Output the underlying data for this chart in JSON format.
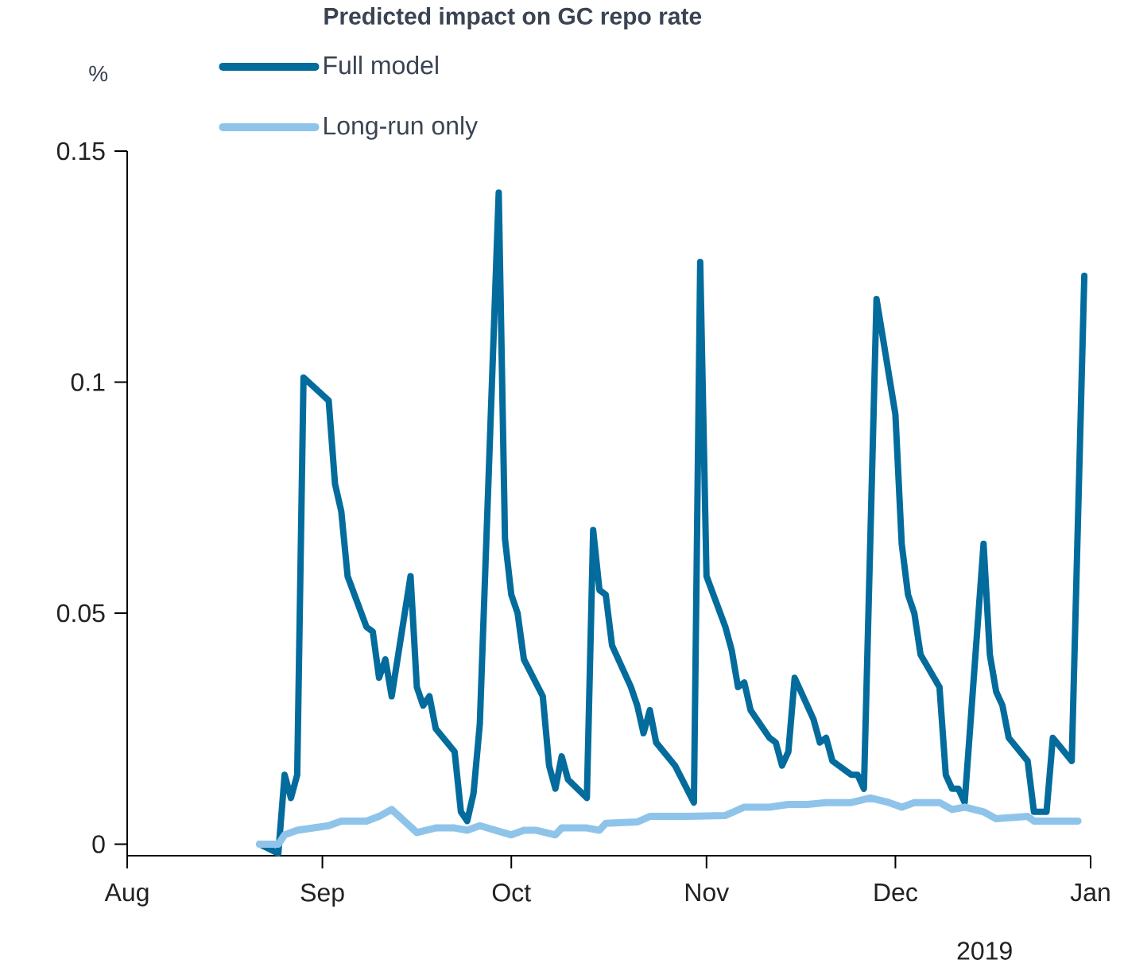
{
  "chart_data": {
    "type": "line",
    "title": "Predicted impact on GC repo rate",
    "ylabel": "%",
    "legend": "top",
    "xlim": [
      "2018-08-01",
      "2019-01-01"
    ],
    "xticks": [
      {
        "value": "2018-08-01",
        "label": "Aug"
      },
      {
        "value": "2018-09-01",
        "label": "Sep"
      },
      {
        "value": "2018-10-01",
        "label": "Oct"
      },
      {
        "value": "2018-11-01",
        "label": "Nov"
      },
      {
        "value": "2018-12-01",
        "label": "Dec"
      },
      {
        "value": "2019-01-01",
        "label": "Jan"
      }
    ],
    "ylim": [
      -0.0025,
      0.15
    ],
    "yticks": [
      0,
      0.05,
      0.1,
      0.15
    ],
    "annotations": [
      "2019"
    ],
    "series": [
      {
        "name": "Full model",
        "color": "#036c9d",
        "x": [
          "2018-08-22",
          "2018-08-25",
          "2018-08-26",
          "2018-08-27",
          "2018-08-28",
          "2018-08-29",
          "2018-09-02",
          "2018-09-03",
          "2018-09-04",
          "2018-09-05",
          "2018-09-08",
          "2018-09-09",
          "2018-09-10",
          "2018-09-11",
          "2018-09-12",
          "2018-09-15",
          "2018-09-16",
          "2018-09-17",
          "2018-09-18",
          "2018-09-19",
          "2018-09-22",
          "2018-09-23",
          "2018-09-24",
          "2018-09-25",
          "2018-09-26",
          "2018-09-29",
          "2018-09-30",
          "2018-10-01",
          "2018-10-02",
          "2018-10-03",
          "2018-10-06",
          "2018-10-07",
          "2018-10-08",
          "2018-10-09",
          "2018-10-10",
          "2018-10-13",
          "2018-10-14",
          "2018-10-15",
          "2018-10-16",
          "2018-10-17",
          "2018-10-20",
          "2018-10-21",
          "2018-10-22",
          "2018-10-23",
          "2018-10-24",
          "2018-10-27",
          "2018-10-30",
          "2018-10-31",
          "2018-11-01",
          "2018-11-04",
          "2018-11-05",
          "2018-11-06",
          "2018-11-07",
          "2018-11-08",
          "2018-11-11",
          "2018-11-12",
          "2018-11-13",
          "2018-11-14",
          "2018-11-15",
          "2018-11-18",
          "2018-11-19",
          "2018-11-20",
          "2018-11-21",
          "2018-11-24",
          "2018-11-25",
          "2018-11-26",
          "2018-11-28",
          "2018-12-01",
          "2018-12-02",
          "2018-12-03",
          "2018-12-04",
          "2018-12-05",
          "2018-12-08",
          "2018-12-09",
          "2018-12-10",
          "2018-12-11",
          "2018-12-12",
          "2018-12-15",
          "2018-12-16",
          "2018-12-17",
          "2018-12-18",
          "2018-12-19",
          "2018-12-22",
          "2018-12-23",
          "2018-12-25",
          "2018-12-26",
          "2018-12-29",
          "2018-12-31"
        ],
        "values": [
          0,
          -0.002,
          0.015,
          0.01,
          0.015,
          0.101,
          0.096,
          0.078,
          0.072,
          0.058,
          0.047,
          0.046,
          0.036,
          0.04,
          0.032,
          0.058,
          0.034,
          0.03,
          0.032,
          0.025,
          0.02,
          0.007,
          0.005,
          0.011,
          0.026,
          0.141,
          0.066,
          0.054,
          0.05,
          0.04,
          0.032,
          0.017,
          0.012,
          0.019,
          0.014,
          0.01,
          0.068,
          0.055,
          0.054,
          0.043,
          0.034,
          0.03,
          0.024,
          0.029,
          0.022,
          0.017,
          0.009,
          0.126,
          0.058,
          0.047,
          0.042,
          0.034,
          0.035,
          0.029,
          0.023,
          0.022,
          0.017,
          0.02,
          0.036,
          0.027,
          0.022,
          0.023,
          0.018,
          0.015,
          0.015,
          0.012,
          0.118,
          0.093,
          0.065,
          0.054,
          0.05,
          0.041,
          0.034,
          0.015,
          0.012,
          0.012,
          0.009,
          0.065,
          0.041,
          0.033,
          0.03,
          0.023,
          0.018,
          0.007,
          0.007,
          0.023,
          0.018,
          0.123
        ]
      },
      {
        "name": "Long-run only",
        "color": "#8fc4ea",
        "x": [
          "2018-08-22",
          "2018-08-25",
          "2018-08-26",
          "2018-08-28",
          "2018-09-02",
          "2018-09-04",
          "2018-09-08",
          "2018-09-10",
          "2018-09-12",
          "2018-09-16",
          "2018-09-19",
          "2018-09-22",
          "2018-09-24",
          "2018-09-26",
          "2018-10-01",
          "2018-10-03",
          "2018-10-05",
          "2018-10-08",
          "2018-10-09",
          "2018-10-13",
          "2018-10-15",
          "2018-10-16",
          "2018-10-21",
          "2018-10-23",
          "2018-10-29",
          "2018-11-04",
          "2018-11-07",
          "2018-11-11",
          "2018-11-14",
          "2018-11-17",
          "2018-11-20",
          "2018-11-24",
          "2018-11-27",
          "2018-11-30",
          "2018-12-02",
          "2018-12-04",
          "2018-12-08",
          "2018-12-10",
          "2018-12-12",
          "2018-12-15",
          "2018-12-17",
          "2018-12-22",
          "2018-12-23",
          "2018-12-30"
        ],
        "values": [
          0,
          0,
          0.002,
          0.003,
          0.004,
          0.005,
          0.005,
          0.006,
          0.0075,
          0.0025,
          0.0035,
          0.0035,
          0.003,
          0.004,
          0.002,
          0.003,
          0.003,
          0.002,
          0.0035,
          0.0035,
          0.003,
          0.0045,
          0.0048,
          0.006,
          0.006,
          0.0062,
          0.008,
          0.008,
          0.0086,
          0.0086,
          0.009,
          0.009,
          0.01,
          0.009,
          0.008,
          0.009,
          0.009,
          0.0075,
          0.008,
          0.007,
          0.0055,
          0.006,
          0.005,
          0.005
        ]
      }
    ]
  }
}
